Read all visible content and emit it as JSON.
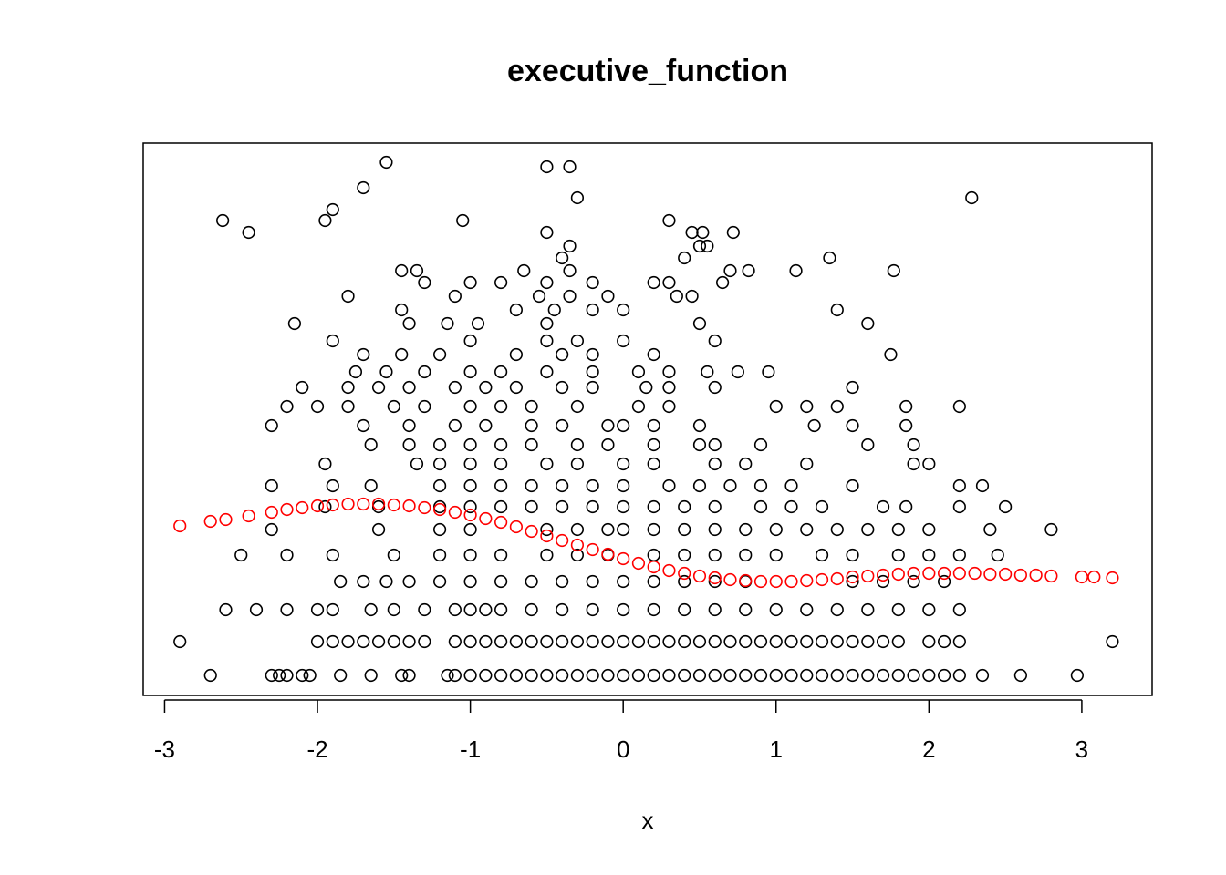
{
  "chart_data": {
    "type": "scatter",
    "title": "executive_function",
    "x_label": "x",
    "xlim": [
      -3.14,
      3.46
    ],
    "ylim": [
      -0.22,
      5.84
    ],
    "xticks": [
      -3,
      -2,
      -1,
      0,
      1,
      2,
      3
    ],
    "grid": false,
    "series": [
      {
        "color": "#000000",
        "x": [
          -2.7,
          -2.3,
          -2.25,
          -2.2,
          -2.1,
          -2.05,
          -1.85,
          -1.65,
          -1.45,
          -1.4,
          -1.15,
          -1.1,
          -1.0,
          -0.9,
          -0.8,
          -0.7,
          -0.6,
          -0.5,
          -0.4,
          -0.3,
          -0.2,
          -0.1,
          0,
          0.1,
          0.2,
          0.3,
          0.4,
          0.5,
          0.6,
          0.7,
          0.8,
          0.9,
          1.0,
          1.1,
          1.2,
          1.3,
          1.4,
          1.5,
          1.6,
          1.7,
          1.8,
          1.9,
          2.0,
          2.1,
          2.2,
          2.35,
          2.6,
          2.97,
          -2.9,
          -2.0,
          -1.9,
          -1.8,
          -1.7,
          -1.6,
          -1.5,
          -1.4,
          -1.3,
          -1.1,
          -1.0,
          -0.9,
          -0.8,
          -0.7,
          -0.6,
          -0.5,
          -0.4,
          -0.3,
          -0.2,
          -0.1,
          0,
          0.1,
          0.2,
          0.3,
          0.4,
          0.5,
          0.6,
          0.7,
          0.8,
          0.9,
          1.0,
          1.1,
          1.2,
          1.3,
          1.4,
          1.5,
          1.6,
          1.7,
          1.8,
          2.0,
          2.1,
          2.2,
          3.2,
          -2.6,
          -2.4,
          -2.2,
          -2.0,
          -1.9,
          -1.65,
          -1.5,
          -1.3,
          -1.1,
          -1.0,
          -0.9,
          -0.8,
          -0.6,
          -0.4,
          -0.2,
          0,
          0.2,
          0.4,
          0.6,
          0.8,
          1.0,
          1.2,
          1.4,
          1.6,
          1.8,
          2.0,
          2.2,
          -1.85,
          -1.7,
          -1.55,
          -1.4,
          -1.2,
          -1.0,
          -0.8,
          -0.6,
          -0.4,
          -0.2,
          0,
          0.2,
          0.4,
          0.6,
          0.8,
          1.5,
          1.7,
          1.9,
          2.1,
          -2.5,
          -2.2,
          -1.9,
          -1.5,
          -1.2,
          -1.0,
          -0.8,
          -0.5,
          -0.3,
          -0.1,
          0.2,
          0.4,
          0.6,
          0.8,
          1.0,
          1.3,
          1.5,
          1.8,
          2.0,
          2.2,
          2.45,
          -2.3,
          -1.6,
          -1.2,
          -1.0,
          -0.5,
          -0.3,
          -0.1,
          0,
          0.2,
          0.4,
          0.6,
          0.8,
          1.0,
          1.2,
          1.4,
          1.6,
          1.8,
          2.0,
          2.4,
          2.8,
          -1.95,
          -1.6,
          -1.2,
          -1.0,
          -0.8,
          -0.6,
          -0.4,
          -0.2,
          0,
          0.2,
          0.4,
          0.6,
          0.9,
          1.1,
          1.3,
          1.7,
          1.85,
          2.2,
          2.5,
          -2.3,
          -1.9,
          -1.65,
          -1.2,
          -1.0,
          -0.8,
          -0.6,
          -0.4,
          -0.2,
          0,
          0.3,
          0.5,
          0.7,
          0.9,
          1.1,
          1.5,
          2.2,
          2.35,
          -1.95,
          -1.35,
          -1.2,
          -1.0,
          -0.8,
          -0.5,
          -0.3,
          0,
          0.2,
          0.6,
          0.8,
          1.2,
          1.9,
          2.0,
          -1.65,
          -1.4,
          -1.2,
          -1.0,
          -0.8,
          -0.6,
          -0.3,
          -0.1,
          0.2,
          0.5,
          0.6,
          0.9,
          1.6,
          1.9,
          -2.3,
          -1.7,
          -1.4,
          -1.1,
          -0.9,
          -0.6,
          -0.4,
          -0.1,
          0,
          0.2,
          0.5,
          1.25,
          1.5,
          1.85,
          -2.2,
          -2.0,
          -1.8,
          -1.5,
          -1.3,
          -1.0,
          -0.8,
          -0.6,
          -0.3,
          0.1,
          0.3,
          1.0,
          1.2,
          1.4,
          1.85,
          2.2,
          -2.1,
          -1.8,
          -1.6,
          -1.4,
          -1.1,
          -0.9,
          -0.7,
          -0.4,
          -0.2,
          0.15,
          0.3,
          0.6,
          1.5,
          -1.75,
          -1.55,
          -1.3,
          -1.0,
          -0.8,
          -0.5,
          -0.2,
          0.1,
          0.3,
          0.55,
          0.75,
          0.95,
          -1.7,
          -1.45,
          -1.2,
          -0.7,
          -0.4,
          -0.2,
          0.2,
          1.75,
          -1.9,
          -1.0,
          -0.5,
          -0.3,
          0,
          0.6,
          -2.15,
          -1.4,
          -1.15,
          -0.95,
          -0.5,
          0.5,
          1.6,
          -1.45,
          -0.7,
          -0.45,
          -0.2,
          0,
          1.4,
          -1.8,
          -1.1,
          -0.55,
          -0.35,
          -0.1,
          0.35,
          0.45,
          -1.3,
          -1.0,
          -0.8,
          -0.5,
          -0.2,
          0.2,
          0.3,
          0.65,
          -1.45,
          -1.35,
          -0.65,
          -0.35,
          0.7,
          0.82,
          1.13,
          1.77,
          -0.4,
          0.4,
          1.35,
          -0.35,
          0.5,
          0.55,
          -2.45,
          -0.5,
          0.45,
          0.52,
          0.72,
          -1.95,
          -1.05,
          0.3,
          -2.62,
          -1.9,
          -0.3,
          2.28,
          -1.7,
          -0.5,
          -0.35,
          -1.55
        ],
        "values": [
          0,
          0,
          0,
          0,
          0,
          0,
          0,
          0,
          0,
          0,
          0,
          0,
          0,
          0,
          0,
          0,
          0,
          0,
          0,
          0,
          0,
          0,
          0,
          0,
          0,
          0,
          0,
          0,
          0,
          0,
          0,
          0,
          0,
          0,
          0,
          0,
          0,
          0,
          0,
          0,
          0,
          0,
          0,
          0,
          0,
          0,
          0,
          0,
          0.37,
          0.37,
          0.37,
          0.37,
          0.37,
          0.37,
          0.37,
          0.37,
          0.37,
          0.37,
          0.37,
          0.37,
          0.37,
          0.37,
          0.37,
          0.37,
          0.37,
          0.37,
          0.37,
          0.37,
          0.37,
          0.37,
          0.37,
          0.37,
          0.37,
          0.37,
          0.37,
          0.37,
          0.37,
          0.37,
          0.37,
          0.37,
          0.37,
          0.37,
          0.37,
          0.37,
          0.37,
          0.37,
          0.37,
          0.37,
          0.37,
          0.37,
          0.37,
          0.72,
          0.72,
          0.72,
          0.72,
          0.72,
          0.72,
          0.72,
          0.72,
          0.72,
          0.72,
          0.72,
          0.72,
          0.72,
          0.72,
          0.72,
          0.72,
          0.72,
          0.72,
          0.72,
          0.72,
          0.72,
          0.72,
          0.72,
          0.72,
          0.72,
          0.72,
          0.72,
          1.03,
          1.03,
          1.03,
          1.03,
          1.03,
          1.03,
          1.03,
          1.03,
          1.03,
          1.03,
          1.03,
          1.03,
          1.03,
          1.03,
          1.03,
          1.03,
          1.03,
          1.03,
          1.03,
          1.32,
          1.32,
          1.32,
          1.32,
          1.32,
          1.32,
          1.32,
          1.32,
          1.32,
          1.32,
          1.32,
          1.32,
          1.32,
          1.32,
          1.32,
          1.32,
          1.32,
          1.32,
          1.32,
          1.32,
          1.32,
          1.6,
          1.6,
          1.6,
          1.6,
          1.6,
          1.6,
          1.6,
          1.6,
          1.6,
          1.6,
          1.6,
          1.6,
          1.6,
          1.6,
          1.6,
          1.6,
          1.6,
          1.6,
          1.6,
          1.6,
          1.85,
          1.85,
          1.85,
          1.85,
          1.85,
          1.85,
          1.85,
          1.85,
          1.85,
          1.85,
          1.85,
          1.85,
          1.85,
          1.85,
          1.85,
          1.85,
          1.85,
          1.85,
          1.85,
          2.08,
          2.08,
          2.08,
          2.08,
          2.08,
          2.08,
          2.08,
          2.08,
          2.08,
          2.08,
          2.08,
          2.08,
          2.08,
          2.08,
          2.08,
          2.08,
          2.08,
          2.08,
          2.32,
          2.32,
          2.32,
          2.32,
          2.32,
          2.32,
          2.32,
          2.32,
          2.32,
          2.32,
          2.32,
          2.32,
          2.32,
          2.32,
          2.53,
          2.53,
          2.53,
          2.53,
          2.53,
          2.53,
          2.53,
          2.53,
          2.53,
          2.53,
          2.53,
          2.53,
          2.53,
          2.53,
          2.74,
          2.74,
          2.74,
          2.74,
          2.74,
          2.74,
          2.74,
          2.74,
          2.74,
          2.74,
          2.74,
          2.74,
          2.74,
          2.74,
          2.95,
          2.95,
          2.95,
          2.95,
          2.95,
          2.95,
          2.95,
          2.95,
          2.95,
          2.95,
          2.95,
          2.95,
          2.95,
          2.95,
          2.95,
          2.95,
          3.16,
          3.16,
          3.16,
          3.16,
          3.16,
          3.16,
          3.16,
          3.16,
          3.16,
          3.16,
          3.16,
          3.16,
          3.16,
          3.33,
          3.33,
          3.33,
          3.33,
          3.33,
          3.33,
          3.33,
          3.33,
          3.33,
          3.33,
          3.33,
          3.33,
          3.52,
          3.52,
          3.52,
          3.52,
          3.52,
          3.52,
          3.52,
          3.52,
          3.67,
          3.67,
          3.67,
          3.67,
          3.67,
          3.67,
          3.86,
          3.86,
          3.86,
          3.86,
          3.86,
          3.86,
          3.86,
          4.01,
          4.01,
          4.01,
          4.01,
          4.01,
          4.01,
          4.16,
          4.16,
          4.16,
          4.16,
          4.16,
          4.16,
          4.16,
          4.31,
          4.31,
          4.31,
          4.31,
          4.31,
          4.31,
          4.31,
          4.31,
          4.44,
          4.44,
          4.44,
          4.44,
          4.44,
          4.44,
          4.44,
          4.44,
          4.58,
          4.58,
          4.58,
          4.71,
          4.71,
          4.71,
          4.86,
          4.86,
          4.86,
          4.86,
          4.86,
          4.99,
          4.99,
          4.99,
          4.99,
          5.11,
          5.24,
          5.24,
          5.35,
          5.58,
          5.58,
          5.63
        ]
      },
      {
        "color": "#ff0000",
        "x": [
          -2.9,
          -2.7,
          -2.6,
          -2.45,
          -2.3,
          -2.2,
          -2.1,
          -2.0,
          -1.9,
          -1.8,
          -1.7,
          -1.6,
          -1.5,
          -1.4,
          -1.3,
          -1.2,
          -1.1,
          -1.0,
          -0.9,
          -0.8,
          -0.7,
          -0.6,
          -0.5,
          -0.4,
          -0.3,
          -0.2,
          -0.1,
          0,
          0.1,
          0.2,
          0.3,
          0.4,
          0.5,
          0.6,
          0.7,
          0.8,
          0.9,
          1.0,
          1.1,
          1.2,
          1.3,
          1.4,
          1.5,
          1.6,
          1.7,
          1.8,
          1.9,
          2.0,
          2.1,
          2.2,
          2.3,
          2.4,
          2.5,
          2.6,
          2.7,
          2.8,
          3.0,
          3.08,
          3.2
        ],
        "values": [
          1.64,
          1.69,
          1.71,
          1.75,
          1.79,
          1.82,
          1.84,
          1.86,
          1.87,
          1.88,
          1.88,
          1.88,
          1.87,
          1.86,
          1.84,
          1.82,
          1.79,
          1.76,
          1.72,
          1.68,
          1.63,
          1.58,
          1.53,
          1.48,
          1.43,
          1.38,
          1.33,
          1.28,
          1.23,
          1.19,
          1.15,
          1.12,
          1.09,
          1.07,
          1.05,
          1.04,
          1.03,
          1.03,
          1.03,
          1.04,
          1.05,
          1.06,
          1.08,
          1.09,
          1.1,
          1.11,
          1.12,
          1.12,
          1.12,
          1.12,
          1.12,
          1.11,
          1.11,
          1.1,
          1.1,
          1.09,
          1.08,
          1.08,
          1.07
        ]
      }
    ]
  }
}
